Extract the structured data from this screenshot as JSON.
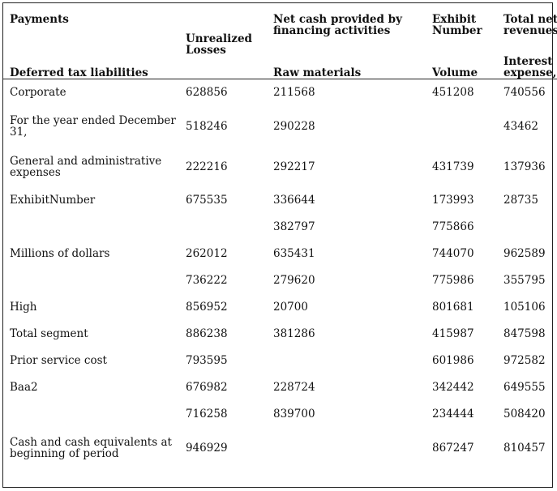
{
  "table": {
    "headers": {
      "col1_top": "Payments",
      "col1_bottom": "Deferred tax liabilities",
      "col2": "Unrealized Losses",
      "col3_top": "Net cash provided by financing activities",
      "col3_bottom": "Raw materials",
      "col4_top": "Exhibit Number",
      "col4_bottom": "Volume",
      "col5_top": "Total net revenues",
      "col5_bottom": "Interest expense, net"
    },
    "rows": [
      {
        "label": "Corporate",
        "c2": "628856",
        "c3": "211568",
        "c4": "451208",
        "c5": "740556"
      },
      {
        "label": "For the year ended December 31,",
        "c2": "518246",
        "c3": "290228",
        "c4": "",
        "c5": "43462"
      },
      {
        "label": "General and administrative expenses",
        "c2": "222216",
        "c3": "292217",
        "c4": "431739",
        "c5": "137936"
      },
      {
        "label": "ExhibitNumber",
        "c2": "675535",
        "c3": "336644",
        "c4": "173993",
        "c5": "28735"
      },
      {
        "label": "",
        "c2": "",
        "c3": "382797",
        "c4": "775866",
        "c5": ""
      },
      {
        "label": "Millions of dollars",
        "c2": "262012",
        "c3": "635431",
        "c4": "744070",
        "c5": "962589"
      },
      {
        "label": "",
        "c2": "736222",
        "c3": "279620",
        "c4": "775986",
        "c5": "355795"
      },
      {
        "label": "High",
        "c2": "856952",
        "c3": "20700",
        "c4": "801681",
        "c5": "105106"
      },
      {
        "label": "Total segment",
        "c2": "886238",
        "c3": "381286",
        "c4": "415987",
        "c5": "847598"
      },
      {
        "label": "Prior service cost",
        "c2": "793595",
        "c3": "",
        "c4": "601986",
        "c5": "972582"
      },
      {
        "label": "Baa2",
        "c2": "676982",
        "c3": "228724",
        "c4": "342442",
        "c5": "649555"
      },
      {
        "label": "",
        "c2": "716258",
        "c3": "839700",
        "c4": "234444",
        "c5": "508420"
      },
      {
        "label": "Cash and cash equivalents at beginning of period",
        "c2": "946929",
        "c3": "",
        "c4": "867247",
        "c5": "810457"
      }
    ]
  }
}
